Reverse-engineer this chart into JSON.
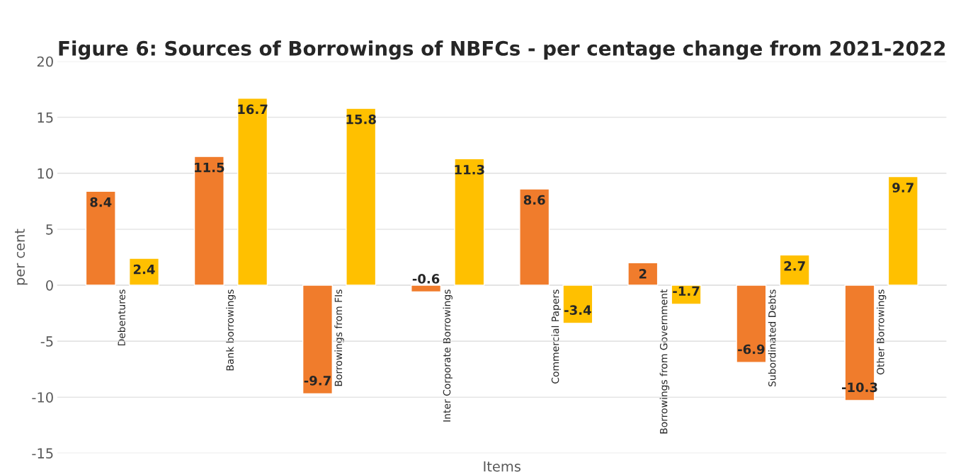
{
  "chart_data": {
    "type": "bar",
    "title": "Figure 6: Sources of Borrowings of NBFCs - per centage change from 2021-2022",
    "xlabel": "Items",
    "ylabel": "per cent",
    "categories": [
      "Debentures",
      "Bank borrowings",
      "Borrowings from FIs",
      "Inter Corporate Borrowings",
      "Commercial Papers",
      "Borrowings from Government",
      "Subordinated Debts",
      "Other Borrowings"
    ],
    "series": [
      {
        "color": "#f07c2c",
        "values": [
          8.4,
          11.5,
          -9.7,
          -0.6,
          8.6,
          2,
          -6.9,
          -10.3
        ]
      },
      {
        "color": "#ffc000",
        "values": [
          2.4,
          16.7,
          15.8,
          11.3,
          -3.4,
          -1.7,
          2.7,
          9.7
        ]
      }
    ],
    "ylim": [
      -15,
      20
    ],
    "yticks": [
      -15,
      -10,
      -5,
      0,
      5,
      10,
      15,
      20
    ],
    "grid": "y",
    "data_labels": true
  }
}
